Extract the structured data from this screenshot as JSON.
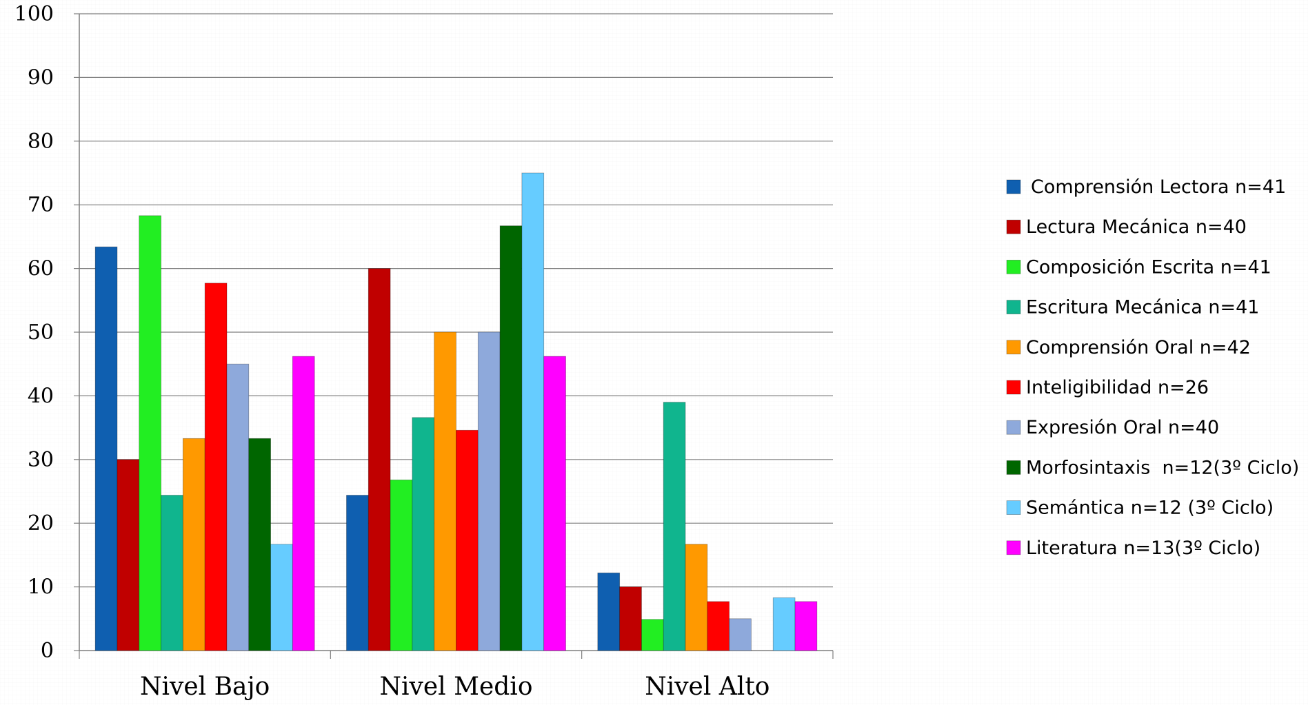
{
  "chart_data": {
    "type": "bar",
    "title": "",
    "xlabel": "",
    "ylabel": "",
    "ylim": [
      0,
      100
    ],
    "yticks": [
      0,
      10,
      20,
      30,
      40,
      50,
      60,
      70,
      80,
      90,
      100
    ],
    "grid": true,
    "legend_position": "right",
    "categories": [
      "Nivel Bajo",
      "Nivel Medio",
      "Nivel Alto"
    ],
    "series": [
      {
        "name": "Comprensión Lectora n=41",
        "color": "#0F5FB0",
        "values": [
          63.4,
          24.4,
          12.2
        ]
      },
      {
        "name": "Lectura Mecánica n=40",
        "color": "#C00000",
        "values": [
          30,
          60,
          10
        ]
      },
      {
        "name": "Composición Escrita n=41",
        "color": "#22EE22",
        "values": [
          68.3,
          26.8,
          4.9
        ]
      },
      {
        "name": "Escritura Mecánica n=41",
        "color": "#10B58E",
        "values": [
          24.4,
          36.6,
          39
        ]
      },
      {
        "name": "Comprensión Oral n=42",
        "color": "#FF9900",
        "values": [
          33.3,
          50,
          16.7
        ]
      },
      {
        "name": "Inteligibilidad n=26",
        "color": "#FF0000",
        "values": [
          57.7,
          34.6,
          7.7
        ]
      },
      {
        "name": "Expresión Oral n=40",
        "color": "#8EA9DB",
        "values": [
          45,
          50,
          5
        ]
      },
      {
        "name": "Morfosintaxis  n=12(3º Ciclo)",
        "color": "#006600",
        "values": [
          33.3,
          66.7,
          0
        ]
      },
      {
        "name": "Semántica n=12 (3º Ciclo)",
        "color": "#66CCFF",
        "values": [
          16.7,
          75,
          8.3
        ]
      },
      {
        "name": "Literatura n=13(3º Ciclo)",
        "color": "#FF00FF",
        "values": [
          46.2,
          46.2,
          7.7
        ]
      }
    ]
  }
}
